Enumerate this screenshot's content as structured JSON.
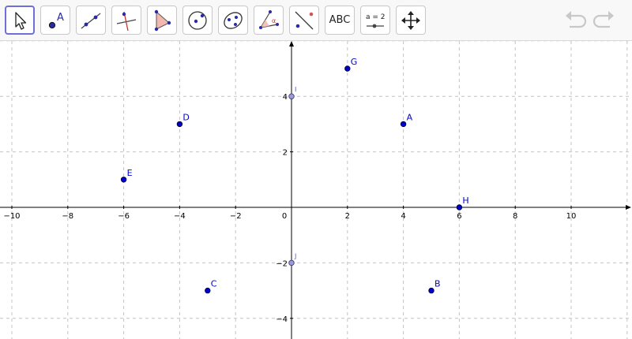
{
  "toolbar": {
    "tools": [
      {
        "name": "move-tool",
        "icon": "arrow-cursor-icon",
        "selected": true
      },
      {
        "name": "point-tool",
        "icon": "point-icon",
        "label": "A"
      },
      {
        "name": "line-tool",
        "icon": "line-through-points-icon"
      },
      {
        "name": "perpendicular-line-tool",
        "icon": "perpendicular-line-icon"
      },
      {
        "name": "polygon-tool",
        "icon": "polygon-icon"
      },
      {
        "name": "circle-tool",
        "icon": "circle-center-point-icon"
      },
      {
        "name": "ellipse-tool",
        "icon": "ellipse-icon"
      },
      {
        "name": "angle-tool",
        "icon": "angle-icon",
        "label": "α"
      },
      {
        "name": "reflect-tool",
        "icon": "reflect-about-line-icon"
      },
      {
        "name": "text-tool",
        "icon": "text-icon",
        "label": "ABC"
      },
      {
        "name": "slider-tool",
        "icon": "slider-icon",
        "label": "a = 2"
      },
      {
        "name": "move-graphics-view-tool",
        "icon": "move-arrows-icon"
      }
    ],
    "undo_icon": "undo-icon",
    "redo_icon": "redo-icon"
  },
  "graphics_view": {
    "x_range": [
      -10.5,
      12
    ],
    "y_range": [
      -4.6,
      6
    ],
    "grid": true,
    "x_tick_labels": [
      "−10",
      "−8",
      "−6",
      "−4",
      "−2",
      "0",
      "2",
      "4",
      "6",
      "8",
      "10"
    ],
    "y_tick_labels": [
      "4",
      "2",
      "−2",
      "−4"
    ],
    "points": [
      {
        "label": "A",
        "x": 4,
        "y": 3
      },
      {
        "label": "B",
        "x": 5,
        "y": -3
      },
      {
        "label": "C",
        "x": -3,
        "y": -3
      },
      {
        "label": "D",
        "x": -4,
        "y": 3
      },
      {
        "label": "E",
        "x": -6,
        "y": 1
      },
      {
        "label": "G",
        "x": 2,
        "y": 5
      },
      {
        "label": "H",
        "x": 6,
        "y": 0
      },
      {
        "label": "I",
        "x": 0,
        "y": 4,
        "style": "light"
      },
      {
        "label": "J",
        "x": 0,
        "y": -2,
        "style": "light"
      }
    ],
    "point_color": "#0000cc"
  }
}
